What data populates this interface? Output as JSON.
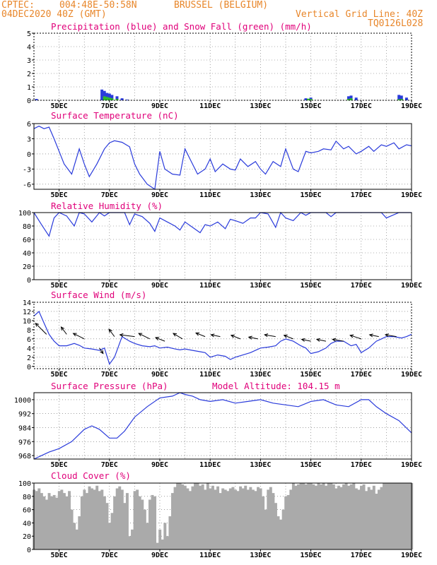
{
  "header": {
    "line1_left": "CPTEC:",
    "line1_coords": "004:48E-50:58N",
    "line1_place": "BRUSSEL (BELGIUM)",
    "line2_left": "04DEC2020 40Z (GMT)",
    "line2_right": "Vertical Grid Line: 40Z",
    "line3_right": "TQ0126L028"
  },
  "colors": {
    "header": "#e8862a",
    "title": "#e0007a",
    "line": "#2a3bdb",
    "snow": "#2fb82f",
    "cloud": "#aaaaaa",
    "grid": "#666666"
  },
  "x_ticks": [
    "5DEC",
    "7DEC",
    "9DEC",
    "11DEC",
    "13DEC",
    "15DEC",
    "17DEC",
    "19DEC"
  ],
  "chart_data": [
    {
      "type": "bar",
      "title": "Precipitation (blue) and Snow Fall (green) (mm/h)",
      "ylim": [
        0,
        5
      ],
      "yticks": [
        0,
        1,
        2,
        3,
        4,
        5
      ],
      "series": [
        {
          "name": "Precipitation",
          "x": [
            4.1,
            6.7,
            6.8,
            6.9,
            7.0,
            7.1,
            7.3,
            7.5,
            7.7,
            14.8,
            15.0,
            16.5,
            16.6,
            16.8,
            18.5,
            18.6,
            18.8
          ],
          "values": [
            0.1,
            0.8,
            0.7,
            0.55,
            0.5,
            0.4,
            0.3,
            0.15,
            0.05,
            0.15,
            0.2,
            0.3,
            0.35,
            0.2,
            0.4,
            0.35,
            0.2
          ]
        },
        {
          "name": "Snow Fall",
          "x": [
            6.8,
            6.9,
            7.0,
            7.1,
            7.3,
            14.9,
            15.0,
            16.5,
            16.6,
            18.5,
            18.6
          ],
          "values": [
            0.3,
            0.25,
            0.2,
            0.15,
            0.1,
            0.12,
            0.1,
            0.1,
            0.15,
            0.08,
            0.1
          ]
        }
      ]
    },
    {
      "type": "line",
      "title": "Surface Temperature (nC)",
      "ylim": [
        -7,
        6
      ],
      "yticks": [
        6,
        3,
        0,
        -3,
        -6
      ],
      "x": [
        4,
        4.2,
        4.4,
        4.6,
        4.8,
        5.0,
        5.2,
        5.5,
        5.8,
        6.0,
        6.2,
        6.5,
        6.8,
        7.0,
        7.2,
        7.5,
        7.8,
        8.0,
        8.2,
        8.5,
        8.8,
        9.0,
        9.2,
        9.5,
        9.8,
        10.0,
        10.2,
        10.5,
        10.8,
        11.0,
        11.2,
        11.5,
        11.8,
        12.0,
        12.2,
        12.5,
        12.8,
        13.0,
        13.2,
        13.5,
        13.8,
        14.0,
        14.3,
        14.5,
        14.8,
        15.0,
        15.3,
        15.5,
        15.8,
        16.0,
        16.3,
        16.5,
        16.8,
        17.0,
        17.3,
        17.5,
        17.8,
        18.0,
        18.3,
        18.5,
        18.8,
        19.0
      ],
      "values": [
        5,
        5.5,
        5,
        5.3,
        3,
        0.5,
        -2,
        -4,
        1,
        -2,
        -4.5,
        -2,
        1,
        2.2,
        2.6,
        2.3,
        1.4,
        -2,
        -4,
        -6,
        -7,
        0.5,
        -3,
        -4,
        -4.2,
        1,
        -1,
        -4,
        -3,
        -1,
        -3.5,
        -2,
        -3,
        -3.2,
        -1,
        -2.5,
        -1.5,
        -3,
        -4,
        -1.5,
        -2.5,
        1,
        -3,
        -3.5,
        0.5,
        0.2,
        0.5,
        1,
        0.8,
        2.5,
        1,
        1.5,
        0,
        0.5,
        1.5,
        0.5,
        1.8,
        1.5,
        2.2,
        1,
        1.8,
        1.6
      ]
    },
    {
      "type": "line",
      "title": "Relative Humidity (%)",
      "ylim": [
        0,
        100
      ],
      "yticks": [
        100,
        80,
        60,
        40,
        20,
        0
      ],
      "x": [
        4,
        4.3,
        4.6,
        4.8,
        5.0,
        5.3,
        5.6,
        5.8,
        6.0,
        6.3,
        6.6,
        6.8,
        7.0,
        7.3,
        7.6,
        7.8,
        8.0,
        8.3,
        8.6,
        8.8,
        9.0,
        9.3,
        9.6,
        9.8,
        10.0,
        10.3,
        10.6,
        10.8,
        11.0,
        11.3,
        11.6,
        11.8,
        12.0,
        12.3,
        12.6,
        12.8,
        13.0,
        13.3,
        13.6,
        13.8,
        14.0,
        14.3,
        14.6,
        14.8,
        15.0,
        15.3,
        15.6,
        15.8,
        16.0,
        16.5,
        17.0,
        17.5,
        17.8,
        18.0,
        18.5,
        19.0
      ],
      "values": [
        100,
        82,
        65,
        92,
        100,
        95,
        80,
        100,
        98,
        86,
        100,
        95,
        100,
        100,
        100,
        82,
        98,
        94,
        84,
        72,
        92,
        86,
        80,
        74,
        86,
        78,
        70,
        82,
        80,
        86,
        76,
        90,
        88,
        84,
        92,
        92,
        100,
        98,
        78,
        100,
        92,
        88,
        100,
        96,
        100,
        100,
        100,
        94,
        100,
        100,
        100,
        100,
        100,
        92,
        100,
        100
      ]
    },
    {
      "type": "line",
      "title": "Surface Wind (m/s)",
      "ylim": [
        -0.5,
        14
      ],
      "yticks": [
        14,
        12,
        10,
        8,
        6,
        4,
        2,
        0
      ],
      "x": [
        4,
        4.2,
        4.4,
        4.6,
        4.8,
        5.0,
        5.3,
        5.6,
        5.8,
        6.0,
        6.3,
        6.6,
        6.8,
        7.0,
        7.2,
        7.5,
        7.8,
        8.0,
        8.3,
        8.6,
        8.8,
        9.0,
        9.3,
        9.6,
        9.8,
        10.0,
        10.3,
        10.6,
        10.8,
        11.0,
        11.3,
        11.6,
        11.8,
        12.0,
        12.3,
        12.6,
        12.8,
        13.0,
        13.3,
        13.6,
        13.8,
        14.0,
        14.3,
        14.6,
        14.8,
        15.0,
        15.3,
        15.6,
        15.8,
        16.0,
        16.3,
        16.6,
        16.8,
        17.0,
        17.3,
        17.6,
        17.8,
        18.0,
        18.3,
        18.6,
        18.8,
        19.0
      ],
      "values": [
        11,
        12,
        9.5,
        7,
        5.5,
        4.5,
        4.5,
        5,
        4.6,
        4,
        3.8,
        3.5,
        4,
        0.5,
        2,
        6.5,
        5.5,
        5,
        4.5,
        4.3,
        4.5,
        4,
        4.2,
        3.8,
        3.6,
        3.8,
        3.5,
        3.2,
        3,
        2,
        2.5,
        2.2,
        1.5,
        2,
        2.5,
        3,
        3.5,
        4,
        4.2,
        4.5,
        5.5,
        6,
        5.5,
        4.5,
        4,
        2.8,
        3.2,
        4,
        5,
        5.5,
        5.5,
        4.5,
        4.8,
        3,
        4,
        5.5,
        6,
        6.5,
        6.5,
        6.2,
        6.5,
        7
      ]
    },
    {
      "type": "line",
      "title": "Surface Pressure (hPa)",
      "annotation": "Model Altitude: 104.15 m",
      "ylim": [
        966,
        1004
      ],
      "yticks": [
        1000,
        992,
        984,
        976,
        968
      ],
      "x": [
        4,
        4.3,
        4.6,
        5.0,
        5.5,
        6.0,
        6.3,
        6.6,
        7.0,
        7.3,
        7.6,
        8.0,
        8.5,
        9.0,
        9.5,
        9.8,
        10.0,
        10.3,
        10.6,
        11.0,
        11.5,
        12.0,
        12.5,
        13.0,
        13.5,
        14.0,
        14.5,
        15.0,
        15.5,
        16.0,
        16.5,
        17.0,
        17.3,
        17.6,
        18.0,
        18.5,
        19.0
      ],
      "values": [
        966,
        968,
        970,
        972,
        976,
        983,
        985,
        983,
        978,
        978,
        982,
        990,
        996,
        1001,
        1002,
        1004,
        1003,
        1002,
        1000,
        999,
        1000,
        998,
        999,
        1000,
        998,
        997,
        996,
        999,
        1000,
        997,
        996,
        1000,
        1000,
        996,
        992,
        988,
        981
      ]
    },
    {
      "type": "bar",
      "title": "Cloud Cover (%)",
      "ylim": [
        0,
        100
      ],
      "yticks": [
        100,
        80,
        60,
        40,
        20,
        0
      ],
      "x": [
        4.0,
        4.1,
        4.2,
        4.3,
        4.4,
        4.5,
        4.6,
        4.7,
        4.8,
        4.9,
        5.0,
        5.1,
        5.2,
        5.3,
        5.4,
        5.5,
        5.6,
        5.7,
        5.8,
        5.9,
        6.0,
        6.1,
        6.2,
        6.3,
        6.4,
        6.5,
        6.6,
        6.7,
        6.8,
        6.9,
        7.0,
        7.1,
        7.2,
        7.3,
        7.4,
        7.5,
        7.6,
        7.7,
        7.8,
        7.9,
        8.0,
        8.1,
        8.2,
        8.3,
        8.4,
        8.5,
        8.6,
        8.7,
        8.8,
        8.9,
        9.0,
        9.1,
        9.2,
        9.3,
        9.4,
        9.5,
        9.6,
        9.7,
        9.8,
        9.9,
        10.0,
        10.1,
        10.2,
        10.3,
        10.4,
        10.5,
        10.6,
        10.7,
        10.8,
        10.9,
        11.0,
        11.1,
        11.2,
        11.3,
        11.4,
        11.5,
        11.6,
        11.7,
        11.8,
        11.9,
        12.0,
        12.1,
        12.2,
        12.3,
        12.4,
        12.5,
        12.6,
        12.7,
        12.8,
        12.9,
        13.0,
        13.1,
        13.2,
        13.3,
        13.4,
        13.5,
        13.6,
        13.7,
        13.8,
        13.9,
        14.0,
        14.1,
        14.2,
        14.3,
        14.4,
        14.5,
        14.6,
        14.7,
        14.8,
        14.9,
        15.0,
        15.1,
        15.2,
        15.3,
        15.4,
        15.5,
        15.6,
        15.7,
        15.8,
        15.9,
        16.0,
        16.1,
        16.2,
        16.3,
        16.4,
        16.5,
        16.6,
        16.7,
        16.8,
        16.9,
        17.0,
        17.1,
        17.2,
        17.3,
        17.4,
        17.5,
        17.6,
        17.7,
        17.8,
        17.9,
        18.0,
        18.1,
        18.2,
        18.3,
        18.4,
        18.5,
        18.6,
        18.7,
        18.8,
        18.9,
        19.0
      ],
      "values": [
        90,
        88,
        92,
        85,
        80,
        75,
        85,
        80,
        82,
        78,
        88,
        90,
        85,
        80,
        88,
        60,
        40,
        30,
        50,
        80,
        90,
        85,
        95,
        92,
        90,
        96,
        88,
        90,
        80,
        70,
        40,
        55,
        80,
        92,
        95,
        90,
        70,
        85,
        20,
        30,
        88,
        90,
        80,
        75,
        60,
        40,
        75,
        82,
        80,
        10,
        30,
        15,
        40,
        20,
        50,
        85,
        94,
        100,
        100,
        98,
        96,
        92,
        88,
        95,
        100,
        100,
        96,
        98,
        90,
        100,
        92,
        96,
        90,
        95,
        85,
        92,
        90,
        88,
        92,
        94,
        90,
        88,
        95,
        92,
        96,
        90,
        94,
        90,
        88,
        94,
        92,
        80,
        60,
        90,
        94,
        85,
        70,
        50,
        45,
        60,
        80,
        82,
        90,
        100,
        96,
        98,
        100,
        100,
        98,
        100,
        100,
        98,
        96,
        100,
        98,
        100,
        96,
        100,
        100,
        98,
        92,
        96,
        94,
        98,
        100,
        96,
        98,
        100,
        92,
        90,
        96,
        98,
        88,
        94,
        90,
        96,
        84,
        90,
        94,
        100,
        100,
        100,
        100,
        100,
        100,
        100,
        100,
        100,
        100,
        100,
        100
      ]
    }
  ],
  "wind_vectors": {
    "x": [
      4.5,
      5.3,
      6.0,
      6.6,
      7.2,
      8.0,
      8.6,
      9.2,
      9.9,
      10.8,
      11.4,
      12.2,
      12.9,
      13.6,
      14.3,
      15.0,
      15.6,
      16.3,
      17.0,
      17.7,
      18.4
    ],
    "bases": [
      7,
      7,
      6,
      4,
      6.5,
      6.5,
      6,
      5.5,
      6,
      6.5,
      6.5,
      6,
      6,
      6.5,
      6,
      5.5,
      5.5,
      5.5,
      6,
      6.5,
      6.5
    ],
    "u": [
      -6,
      -3,
      -6,
      2,
      -3,
      -8,
      -6,
      -5,
      -5,
      -5,
      -5,
      -5,
      -5,
      -6,
      -5,
      -5,
      -5,
      -6,
      -6,
      -5,
      -6
    ],
    "v": [
      6,
      4,
      3,
      -3,
      4,
      1,
      3,
      2,
      3,
      2,
      1,
      2,
      1,
      1,
      2,
      1,
      1,
      1,
      2,
      1,
      1
    ]
  }
}
